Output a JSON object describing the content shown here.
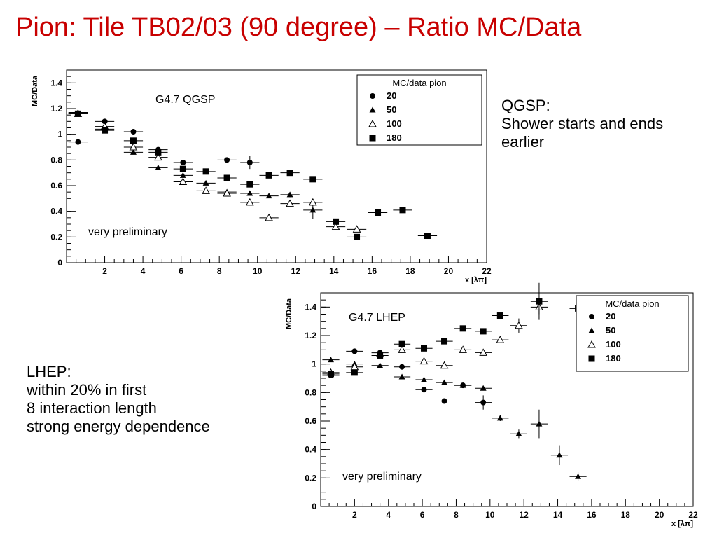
{
  "slide": {
    "title": "Pion:  Tile TB02/03 (90 degree) – Ratio MC/Data"
  },
  "notes": {
    "qgsp": [
      "QGSP:",
      "Shower starts and ends",
      "earlier"
    ],
    "lhep": [
      "LHEP:",
      "within 20% in first",
      "8 interaction length",
      "strong energy dependence"
    ]
  },
  "chart_data": [
    {
      "type": "scatter",
      "model_label": "G4.7 QGSP",
      "annotation": "very preliminary",
      "xlabel": "x [λπ]",
      "ylabel": "MC/Data",
      "xlim": [
        0,
        22
      ],
      "ylim": [
        0,
        1.5
      ],
      "xticks": [
        2,
        4,
        6,
        8,
        10,
        12,
        14,
        16,
        18,
        20,
        22
      ],
      "yticks": [
        0,
        0.2,
        0.4,
        0.6,
        0.8,
        1,
        1.2,
        1.4
      ],
      "legend": {
        "title": "MC/data pion",
        "position": "top-right"
      },
      "series": [
        {
          "name": "20",
          "marker": "circle",
          "points": [
            [
              0.6,
              0.94,
              0.01
            ],
            [
              2.0,
              1.1,
              0.01
            ],
            [
              3.5,
              1.02,
              0.01
            ],
            [
              4.8,
              0.88,
              0.01
            ],
            [
              6.1,
              0.78,
              0.01
            ],
            [
              8.4,
              0.8,
              0.01
            ],
            [
              9.6,
              0.78,
              0.05
            ]
          ]
        },
        {
          "name": "50",
          "marker": "triangle",
          "points": [
            [
              0.6,
              1.17,
              0.01
            ],
            [
              2.0,
              1.04,
              0.01
            ],
            [
              3.5,
              0.86,
              0.01
            ],
            [
              4.8,
              0.74,
              0.01
            ],
            [
              6.1,
              0.68,
              0.01
            ],
            [
              7.3,
              0.62,
              0.01
            ],
            [
              8.4,
              0.55,
              0.01
            ],
            [
              9.6,
              0.54,
              0.01
            ],
            [
              10.6,
              0.52,
              0.01
            ],
            [
              11.7,
              0.53,
              0.02
            ],
            [
              12.9,
              0.41,
              0.07
            ]
          ]
        },
        {
          "name": "100",
          "marker": "triangle-open",
          "points": [
            [
              0.6,
              1.16,
              0.01
            ],
            [
              2.0,
              1.06,
              0.01
            ],
            [
              3.5,
              0.9,
              0.01
            ],
            [
              4.8,
              0.82,
              0.01
            ],
            [
              6.1,
              0.63,
              0.01
            ],
            [
              7.3,
              0.56,
              0.01
            ],
            [
              8.4,
              0.54,
              0.01
            ],
            [
              9.6,
              0.47,
              0.01
            ],
            [
              10.6,
              0.35,
              0.01
            ],
            [
              11.7,
              0.46,
              0.02
            ],
            [
              12.9,
              0.47,
              0.02
            ],
            [
              14.1,
              0.28,
              0.01
            ],
            [
              15.2,
              0.26,
              0.01
            ]
          ]
        },
        {
          "name": "180",
          "marker": "square",
          "points": [
            [
              0.6,
              1.16,
              0.01
            ],
            [
              2.0,
              1.03,
              0.01
            ],
            [
              3.5,
              0.95,
              0.01
            ],
            [
              4.8,
              0.86,
              0.01
            ],
            [
              6.1,
              0.73,
              0.01
            ],
            [
              7.3,
              0.71,
              0.01
            ],
            [
              8.4,
              0.66,
              0.01
            ],
            [
              9.6,
              0.61,
              0.01
            ],
            [
              10.6,
              0.68,
              0.01
            ],
            [
              11.7,
              0.7,
              0.01
            ],
            [
              12.9,
              0.65,
              0.01
            ],
            [
              14.1,
              0.32,
              0.01
            ],
            [
              15.2,
              0.2,
              0.01
            ],
            [
              16.3,
              0.39,
              0.03
            ],
            [
              17.6,
              0.41,
              0.01
            ],
            [
              18.9,
              0.21,
              0.02
            ]
          ]
        }
      ]
    },
    {
      "type": "scatter",
      "model_label": "G4.7 LHEP",
      "annotation": "very preliminary",
      "xlabel": "x [λπ]",
      "ylabel": "MC/Data",
      "xlim": [
        0,
        22
      ],
      "ylim": [
        0,
        1.5
      ],
      "xticks": [
        2,
        4,
        6,
        8,
        10,
        12,
        14,
        16,
        18,
        20,
        22
      ],
      "yticks": [
        0,
        0.2,
        0.4,
        0.6,
        0.8,
        1,
        1.2,
        1.4
      ],
      "legend": {
        "title": "MC/data pion",
        "position": "top-right"
      },
      "series": [
        {
          "name": "20",
          "marker": "circle",
          "points": [
            [
              0.6,
              0.92,
              0.01
            ],
            [
              2.0,
              1.09,
              0.01
            ],
            [
              3.5,
              1.08,
              0.01
            ],
            [
              4.8,
              0.98,
              0.01
            ],
            [
              6.1,
              0.82,
              0.01
            ],
            [
              7.3,
              0.74,
              0.01
            ],
            [
              8.4,
              0.85,
              0.01
            ],
            [
              9.6,
              0.73,
              0.05
            ]
          ]
        },
        {
          "name": "50",
          "marker": "triangle",
          "points": [
            [
              0.6,
              1.03,
              0.01
            ],
            [
              2.0,
              1.0,
              0.01
            ],
            [
              3.5,
              0.99,
              0.01
            ],
            [
              4.8,
              0.91,
              0.01
            ],
            [
              6.1,
              0.89,
              0.01
            ],
            [
              7.3,
              0.87,
              0.01
            ],
            [
              8.4,
              0.85,
              0.01
            ],
            [
              9.6,
              0.83,
              0.01
            ],
            [
              10.6,
              0.62,
              0.02
            ],
            [
              11.7,
              0.51,
              0.03
            ],
            [
              12.9,
              0.58,
              0.1
            ],
            [
              14.1,
              0.36,
              0.07
            ],
            [
              15.2,
              0.21,
              0.03
            ]
          ]
        },
        {
          "name": "100",
          "marker": "triangle-open",
          "points": [
            [
              0.6,
              0.94,
              0.01
            ],
            [
              2.0,
              0.98,
              0.01
            ],
            [
              3.5,
              1.07,
              0.01
            ],
            [
              4.8,
              1.1,
              0.01
            ],
            [
              6.1,
              1.02,
              0.01
            ],
            [
              7.3,
              0.99,
              0.01
            ],
            [
              8.4,
              1.1,
              0.01
            ],
            [
              9.6,
              1.08,
              0.01
            ],
            [
              10.6,
              1.17,
              0.02
            ],
            [
              11.7,
              1.27,
              0.05
            ],
            [
              12.9,
              1.4,
              0.05
            ]
          ]
        },
        {
          "name": "180",
          "marker": "square",
          "points": [
            [
              0.6,
              0.93,
              0.01
            ],
            [
              2.0,
              0.94,
              0.01
            ],
            [
              3.5,
              1.06,
              0.01
            ],
            [
              4.8,
              1.14,
              0.01
            ],
            [
              6.1,
              1.11,
              0.01
            ],
            [
              7.3,
              1.16,
              0.01
            ],
            [
              8.4,
              1.25,
              0.01
            ],
            [
              9.6,
              1.23,
              0.01
            ],
            [
              10.6,
              1.34,
              0.01
            ],
            [
              12.9,
              1.44,
              0.13
            ],
            [
              15.2,
              1.39,
              0.01
            ]
          ]
        }
      ]
    }
  ]
}
